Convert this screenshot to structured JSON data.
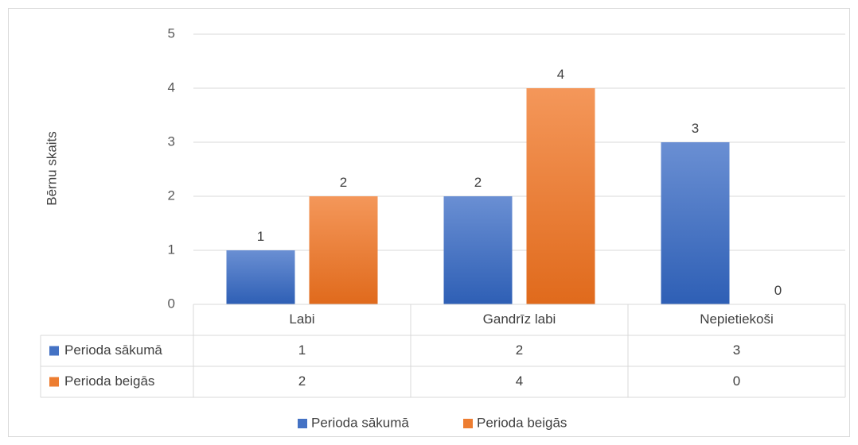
{
  "chart_data": {
    "type": "bar",
    "title": "",
    "xlabel": "",
    "ylabel": "Bērnu skaits",
    "ylim": [
      0,
      5
    ],
    "yticks": [
      0,
      1,
      2,
      3,
      4,
      5
    ],
    "grid": true,
    "categories": [
      "Labi",
      "Gandrīz labi",
      "Nepietiekoši"
    ],
    "series": [
      {
        "name": "Perioda sākumā",
        "values": [
          1,
          2,
          3
        ],
        "color": "#4472c4"
      },
      {
        "name": "Perioda beigās",
        "values": [
          2,
          4,
          0
        ],
        "color": "#ed7d31"
      }
    ],
    "data_table": true,
    "legend_position": "bottom"
  }
}
